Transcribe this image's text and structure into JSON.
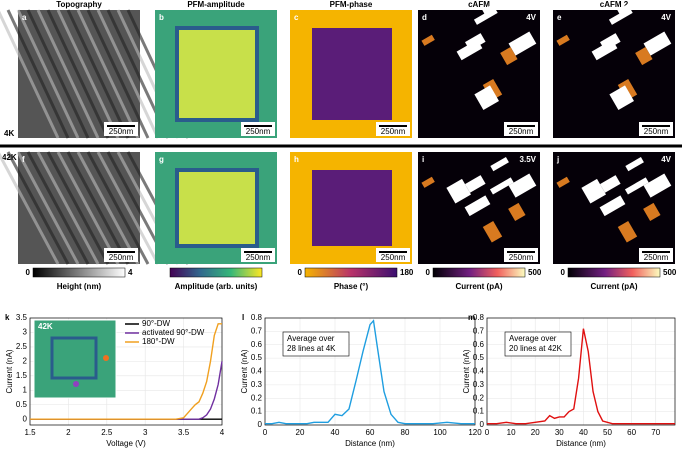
{
  "images": {
    "titles": [
      "Topography",
      "PFM-amplitude",
      "PFM-phase",
      "cAFM",
      "cAFM 2"
    ],
    "rows": [
      {
        "temperature": "4K",
        "panels": [
          {
            "letter": "a",
            "scale": "250nm"
          },
          {
            "letter": "b",
            "scale": "250nm"
          },
          {
            "letter": "c",
            "scale": "250nm"
          },
          {
            "letter": "d",
            "voltage": "4V",
            "scale": "250nm"
          },
          {
            "letter": "e",
            "voltage": "4V",
            "scale": "250nm"
          }
        ]
      },
      {
        "temperature": "42K",
        "panels": [
          {
            "letter": "f",
            "scale": "250nm"
          },
          {
            "letter": "g",
            "scale": "250nm"
          },
          {
            "letter": "h",
            "scale": "250nm"
          },
          {
            "letter": "i",
            "voltage": "3.5V",
            "scale": "250nm"
          },
          {
            "letter": "j",
            "voltage": "4V",
            "scale": "250nm"
          }
        ]
      }
    ],
    "colorbars": [
      {
        "min": "0",
        "max": "4",
        "label": "Height (nm)"
      },
      {
        "label": "Amplitude (arb. units)"
      },
      {
        "min": "0",
        "max": "180",
        "label": "Phase (°)"
      },
      {
        "min": "0",
        "max": "500",
        "label": "Current (pA)"
      },
      {
        "min": "0",
        "max": "500",
        "label": "Current (pA)"
      }
    ]
  },
  "chart_data": [
    {
      "type": "line",
      "letter": "k",
      "inset_label": "42K",
      "xlabel": "Voltage (V)",
      "ylabel": "Current (nA)",
      "xlim": [
        1.5,
        4
      ],
      "xticks": [
        1.5,
        2,
        2.5,
        3,
        3.5,
        4
      ],
      "ylim": [
        -0.2,
        3.5
      ],
      "yticks": [
        0,
        0.5,
        1,
        1.5,
        2,
        2.5,
        3,
        3.5
      ],
      "legend": "upper right",
      "x": [
        1.5,
        2,
        2.5,
        3,
        3.4,
        3.5,
        3.55,
        3.6,
        3.65,
        3.7,
        3.75,
        3.8,
        3.85,
        3.9,
        3.95,
        4
      ],
      "series": [
        {
          "name": "90°-DW",
          "color": "#000000",
          "values": [
            0,
            0,
            0,
            0,
            0,
            0,
            0,
            0,
            0,
            0,
            0,
            0,
            0,
            0,
            0,
            0
          ]
        },
        {
          "name": "activated 90°-DW",
          "color": "#7030a0",
          "values": [
            0,
            0,
            0,
            0,
            0,
            0,
            0,
            0,
            0,
            0,
            0.05,
            0.15,
            0.35,
            0.7,
            1.2,
            2.0
          ]
        },
        {
          "name": "180°-DW",
          "color": "#f0a020",
          "values": [
            0,
            0,
            0,
            0,
            0,
            0.05,
            0.2,
            0.35,
            0.5,
            0.6,
            0.9,
            1.3,
            2.0,
            2.9,
            3.3,
            3.3
          ]
        }
      ]
    },
    {
      "type": "line",
      "letter": "l",
      "xlabel": "Distance (nm)",
      "ylabel": "Current (nA)",
      "annotation": [
        "Average over",
        "28 lines at 4K"
      ],
      "xlim": [
        0,
        120
      ],
      "xticks": [
        0,
        20,
        40,
        60,
        80,
        100,
        120
      ],
      "ylim": [
        0,
        0.8
      ],
      "yticks": [
        0,
        0.1,
        0.2,
        0.3,
        0.4,
        0.5,
        0.6,
        0.7,
        0.8
      ],
      "x": [
        0,
        4,
        8,
        12,
        16,
        20,
        24,
        28,
        32,
        36,
        40,
        44,
        48,
        52,
        56,
        60,
        62,
        64,
        68,
        72,
        76,
        80,
        88,
        96,
        104,
        112,
        120
      ],
      "series": [
        {
          "name": "4K",
          "color": "#1f9ee0",
          "values": [
            0.01,
            0.01,
            0.02,
            0.01,
            0.01,
            0.01,
            0.01,
            0.02,
            0.02,
            0.02,
            0.08,
            0.07,
            0.12,
            0.33,
            0.55,
            0.75,
            0.78,
            0.6,
            0.25,
            0.08,
            0.02,
            0.01,
            0.01,
            0.01,
            0.02,
            0.01,
            0.01
          ]
        }
      ]
    },
    {
      "type": "line",
      "letter": "m",
      "xlabel": "Distance (nm)",
      "ylabel": "Current (nA)",
      "annotation": [
        "Average over",
        "20 lines at 42K"
      ],
      "xlim": [
        0,
        78
      ],
      "xticks": [
        0,
        10,
        20,
        30,
        40,
        50,
        60,
        70
      ],
      "ylim": [
        0,
        0.8
      ],
      "yticks": [
        0,
        0.1,
        0.2,
        0.3,
        0.4,
        0.5,
        0.6,
        0.7,
        0.8
      ],
      "x": [
        0,
        4,
        8,
        12,
        16,
        20,
        24,
        26,
        28,
        30,
        32,
        34,
        36,
        38,
        40,
        42,
        44,
        46,
        48,
        52,
        56,
        60,
        66,
        72,
        78
      ],
      "series": [
        {
          "name": "42K",
          "color": "#e01010",
          "values": [
            0.01,
            0.01,
            0.02,
            0.01,
            0.01,
            0.02,
            0.03,
            0.07,
            0.05,
            0.06,
            0.06,
            0.1,
            0.12,
            0.35,
            0.72,
            0.55,
            0.25,
            0.1,
            0.03,
            0.01,
            0.01,
            0.01,
            0.01,
            0.01,
            0.01
          ]
        }
      ]
    }
  ]
}
